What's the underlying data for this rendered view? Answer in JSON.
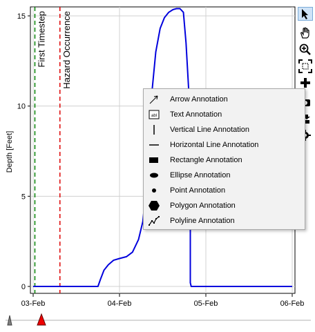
{
  "chart_data": {
    "type": "line",
    "ylabel": "Depth [Feet]",
    "xlabel": "",
    "ylim": [
      0,
      15.5
    ],
    "yticks": [
      0,
      5,
      10,
      15
    ],
    "xlim": [
      0,
      3
    ],
    "xtick_labels": [
      "03-Feb",
      "04-Feb",
      "05-Feb",
      "06-Feb"
    ],
    "xtick_positions": [
      0,
      1,
      2,
      3
    ],
    "grid": true,
    "series": [
      {
        "color": "#0000dd",
        "x": [
          0,
          0.75,
          0.78,
          0.82,
          0.87,
          0.93,
          1.0,
          1.08,
          1.15,
          1.22,
          1.27,
          1.3,
          1.33,
          1.38,
          1.42,
          1.47,
          1.52,
          1.57,
          1.62,
          1.66,
          1.7,
          1.74,
          1.77,
          1.8,
          1.81,
          1.82,
          1.82,
          1.83,
          3.0
        ],
        "y": [
          0,
          0,
          0.4,
          0.9,
          1.2,
          1.45,
          1.55,
          1.65,
          1.9,
          2.6,
          3.6,
          5.0,
          7.5,
          11.0,
          13.0,
          14.3,
          14.9,
          15.2,
          15.35,
          15.4,
          15.4,
          15.2,
          13.5,
          11.0,
          8.0,
          4.0,
          0.2,
          0,
          0
        ]
      }
    ],
    "annotations": [
      {
        "type": "vline",
        "x": 0.02,
        "color": "#008000",
        "label": "First Timestep"
      },
      {
        "type": "vline",
        "x": 0.31,
        "color": "#dd0000",
        "label": "Hazard Occurrence"
      }
    ]
  },
  "toolbar": {
    "icons": [
      "pointer-icon",
      "pan-hand-icon",
      "zoom-in-icon",
      "zoom-extents-icon",
      "add-icon",
      "camera-icon",
      "export-icon",
      "settings-icon"
    ]
  },
  "annotation_menu": {
    "items": [
      {
        "label": "Arrow Annotation",
        "icon": "arrow-icon"
      },
      {
        "label": "Text Annotation",
        "icon": "text-box-icon"
      },
      {
        "label": "Vertical Line Annotation",
        "icon": "vertical-line-icon"
      },
      {
        "label": "Horizontal Line Annotation",
        "icon": "horizontal-line-icon"
      },
      {
        "label": "Rectangle Annotation",
        "icon": "rectangle-icon"
      },
      {
        "label": "Ellipse Annotation",
        "icon": "ellipse-icon"
      },
      {
        "label": "Point Annotation",
        "icon": "point-icon"
      },
      {
        "label": "Polygon Annotation",
        "icon": "polygon-icon"
      },
      {
        "label": "Polyline Annotation",
        "icon": "polyline-icon"
      }
    ]
  },
  "slider": {
    "colors": {
      "start": "#808080",
      "current": "#ee0000"
    }
  },
  "text_icon_glyph": "abl"
}
